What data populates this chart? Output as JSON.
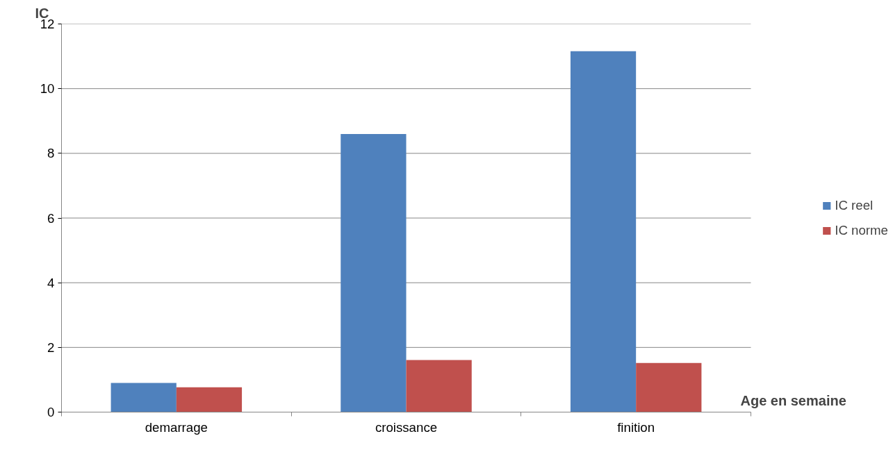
{
  "chart_data": {
    "type": "bar",
    "ylabel": "IC",
    "xlabel": "Age en  semaine",
    "categories": [
      "demarrage",
      "croissance",
      "finition"
    ],
    "series": [
      {
        "name": "IC reel",
        "color": "#4f81bd",
        "values": [
          0.9,
          8.6,
          11.16
        ]
      },
      {
        "name": "IC norme",
        "color": "#c0504d",
        "values": [
          0.77,
          1.61,
          1.52
        ]
      }
    ],
    "ylim": [
      0,
      12
    ],
    "yticks": [
      0,
      2,
      4,
      6,
      8,
      10,
      12
    ],
    "grid": "y",
    "legend": "right"
  }
}
